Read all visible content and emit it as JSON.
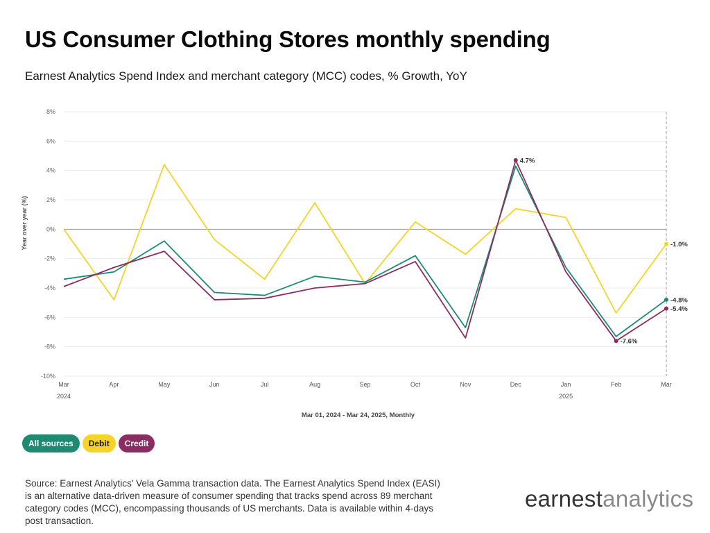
{
  "header": {
    "title": "US Consumer Clothing Stores monthly spending",
    "subtitle": "Earnest Analytics Spend Index and merchant category (MCC) codes, % Growth, YoY"
  },
  "chart_data": {
    "type": "line",
    "ylabel": "Year over year (%)",
    "xlabel": "Mar 01, 2024 - Mar 24, 2025, Monthly",
    "ylim": [
      -10,
      8
    ],
    "yticks": [
      8,
      6,
      4,
      2,
      0,
      -2,
      -4,
      -6,
      -8,
      -10
    ],
    "ytick_labels": [
      "8%",
      "6%",
      "4%",
      "2%",
      "0%",
      "-2%",
      "-4%",
      "-6%",
      "-8%",
      "-10%"
    ],
    "categories": [
      "Mar",
      "Apr",
      "May",
      "Jun",
      "Jul",
      "Aug",
      "Sep",
      "Oct",
      "Nov",
      "Dec",
      "Jan",
      "Feb",
      "Mar"
    ],
    "year_labels": [
      {
        "index": 0,
        "label": "2024"
      },
      {
        "index": 10,
        "label": "2025"
      }
    ],
    "grid": true,
    "zero_line": true,
    "series": [
      {
        "name": "Debit",
        "color": "#F5D327",
        "values": [
          0.0,
          -4.8,
          4.4,
          -0.7,
          -3.4,
          1.8,
          -3.7,
          0.5,
          -1.7,
          1.4,
          0.8,
          -5.7,
          -1.0
        ],
        "end_label": "-1.0%"
      },
      {
        "name": "All sources",
        "color": "#1D8A72",
        "values": [
          -3.4,
          -2.9,
          -0.8,
          -4.3,
          -4.5,
          -3.2,
          -3.6,
          -1.8,
          -6.7,
          4.3,
          -2.6,
          -7.3,
          -4.8
        ],
        "end_label": "-4.8%"
      },
      {
        "name": "Credit",
        "color": "#8B2C63",
        "values": [
          -3.9,
          -2.6,
          -1.5,
          -4.8,
          -4.7,
          -4.0,
          -3.7,
          -2.2,
          -7.4,
          4.7,
          -2.9,
          -7.6,
          -5.4
        ],
        "end_label": "-5.4%"
      }
    ],
    "annotations": [
      {
        "series": "Credit",
        "index": 9,
        "label": "4.7%"
      },
      {
        "series": "Credit",
        "index": 11,
        "label": "-7.6%"
      }
    ],
    "legend_placement": "bottom-left"
  },
  "legend": {
    "items": [
      {
        "label": "All sources",
        "bg": "#1D8A72",
        "fg": "#ffffff"
      },
      {
        "label": "Debit",
        "bg": "#F5D327",
        "fg": "#1a1a1a"
      },
      {
        "label": "Credit",
        "bg": "#8B2C63",
        "fg": "#ffffff"
      }
    ]
  },
  "footer": {
    "source": "Source: Earnest Analytics’ Vela Gamma transaction data. The Earnest Analytics Spend Index (EASI) is an alternative data-driven measure of consumer spending that tracks spend across 89 merchant category codes (MCC), encompassing thousands of US merchants. Data is available within 4-days post transaction.",
    "logo_part1": "earnest",
    "logo_part2": "analytics"
  }
}
